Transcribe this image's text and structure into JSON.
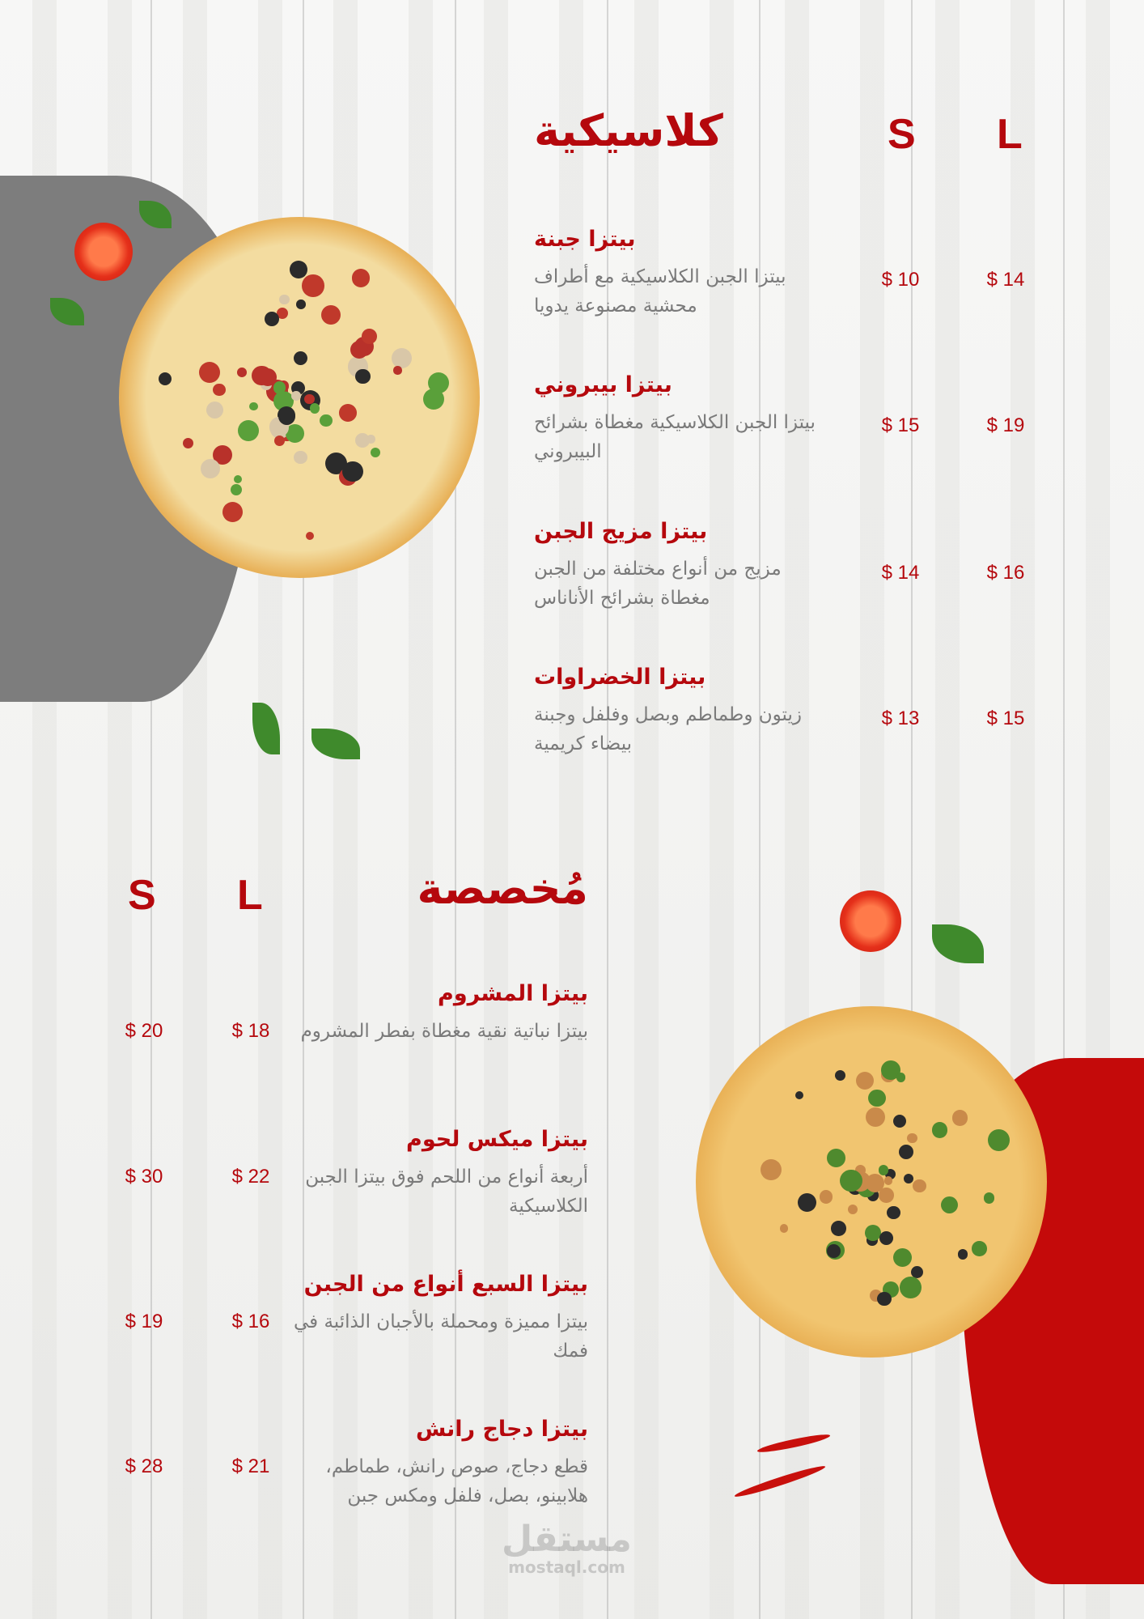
{
  "classic": {
    "title": "كلاسيكية",
    "size_s": "S",
    "size_l": "L",
    "items": [
      {
        "name": "بيتزا جبنة",
        "desc": "بيتزا الجبن الكلاسيكية مع أطراف محشية مصنوعة يدويا",
        "price_s": "$ 10",
        "price_l": "$ 14"
      },
      {
        "name": "بيتزا بيبروني",
        "desc": "بيتزا الجبن الكلاسيكية مغطاة بشرائح البيبروني",
        "price_s": "$ 15",
        "price_l": "$ 19"
      },
      {
        "name": "بيتزا مزيج الجبن",
        "desc": "مزيج من أنواع مختلفة من الجبن مغطاة بشرائح الأناناس",
        "price_s": "$ 14",
        "price_l": "$ 16"
      },
      {
        "name": "بيتزا الخضراوات",
        "desc": "زيتون وطماطم وبصل وفلفل وجبنة بيضاء كريمية",
        "price_s": "$ 13",
        "price_l": "$ 15"
      }
    ]
  },
  "special": {
    "title": "مُخصصة",
    "size_s": "S",
    "size_l": "L",
    "items": [
      {
        "name": "بيتزا المشروم",
        "desc": "بيتزا نباتية نقية مغطاة بفطر المشروم",
        "price_s": "$ 20",
        "price_l": "$ 18"
      },
      {
        "name": "بيتزا ميكس لحوم",
        "desc": "أربعة أنواع من اللحم فوق بيتزا الجبن الكلاسيكية",
        "price_s": "$ 30",
        "price_l": "$ 22"
      },
      {
        "name": "بيتزا السبع أنواع من الجبن",
        "desc": "بيتزا مميزة ومحملة بالأجبان الذائبة في فمك",
        "price_s": "$ 19",
        "price_l": "$ 16"
      },
      {
        "name": "بيتزا دجاج رانش",
        "desc": "قطع دجاج، صوص رانش، طماطم، هلابينو، بصل، فلفل ومكس جبن",
        "price_s": "$ 28",
        "price_l": "$ 21"
      }
    ]
  },
  "watermark": {
    "arabic": "مستقل",
    "latin": "mostaql.com"
  },
  "colors": {
    "accent_red": "#b5080d",
    "blob_gray": "#7d7d7d",
    "blob_red": "#c40a0a",
    "description_gray": "#7a7a7a"
  }
}
